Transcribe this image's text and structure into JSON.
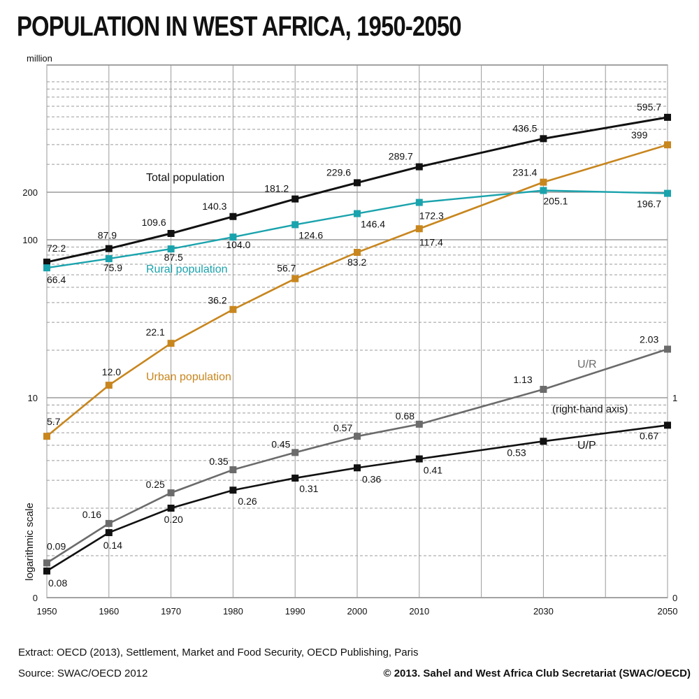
{
  "title": "POPULATION IN WEST AFRICA, 1950-2050",
  "footer": {
    "extract": "Extract: OECD (2013), Settlement, Market and Food Security, OECD Publishing, Paris",
    "source": "Source: SWAC/OECD 2012",
    "copyright": "© 2013. Sahel and West Africa Club Secretariat (SWAC/OECD)"
  },
  "colors": {
    "total": "#111111",
    "rural": "#1aa3ad",
    "urban": "#c8861e",
    "ur": "#6b6b6b",
    "up": "#111111",
    "grid": "#9a9a9a"
  },
  "chart_data": {
    "type": "line",
    "left_axis": {
      "unit_label": "million",
      "scale_label": "logarithmic scale",
      "scale": "log",
      "tick_labels": [
        "0",
        "10",
        "100",
        "200"
      ],
      "ticks": [
        10,
        100,
        200
      ]
    },
    "right_axis": {
      "note": "(right-hand axis)",
      "scale": "log",
      "tick_labels": [
        "0",
        "1"
      ],
      "ticks": [
        1
      ]
    },
    "x": [
      1950,
      1960,
      1970,
      1980,
      1990,
      2000,
      2010,
      2030,
      2050
    ],
    "x_tick_labels": [
      "1950",
      "1960",
      "1970",
      "1980",
      "1990",
      "2000",
      "2010",
      "2030",
      "2050"
    ],
    "series": [
      {
        "key": "total",
        "name": "Total population",
        "axis": "left",
        "values": [
          72.2,
          87.9,
          109.6,
          140.3,
          181.2,
          229.6,
          289.7,
          436.5,
          595.7
        ],
        "labels": [
          "72.2",
          "87.9",
          "109.6",
          "140.3",
          "181.2",
          "229.6",
          "289.7",
          "436.5",
          "595.7"
        ]
      },
      {
        "key": "rural",
        "name": "Rural population",
        "axis": "left",
        "values": [
          66.4,
          75.9,
          87.5,
          104.0,
          124.6,
          146.4,
          172.3,
          205.1,
          196.7
        ],
        "labels": [
          "66.4",
          "75.9",
          "87.5",
          "104.0",
          "124.6",
          "146.4",
          "172.3",
          "205.1",
          "196.7"
        ]
      },
      {
        "key": "urban",
        "name": "Urban population",
        "axis": "left",
        "values": [
          5.7,
          12.0,
          22.1,
          36.2,
          56.7,
          83.2,
          117.4,
          231.4,
          399
        ],
        "labels": [
          "5.7",
          "12.0",
          "22.1",
          "36.2",
          "56.7",
          "83.2",
          "117.4",
          "231.4",
          "399"
        ]
      },
      {
        "key": "ur",
        "name": "U/R",
        "axis": "right",
        "values": [
          0.09,
          0.16,
          0.25,
          0.35,
          0.45,
          0.57,
          0.68,
          1.13,
          2.03
        ],
        "labels": [
          "0.09",
          "0.16",
          "0.25",
          "0.35",
          "0.45",
          "0.57",
          "0.68",
          "1.13",
          "2.03"
        ]
      },
      {
        "key": "up",
        "name": "U/P",
        "axis": "right",
        "values": [
          0.08,
          0.14,
          0.2,
          0.26,
          0.31,
          0.36,
          0.41,
          0.53,
          0.67
        ],
        "labels": [
          "0.08",
          "0.14",
          "0.20",
          "0.26",
          "0.31",
          "0.36",
          "0.41",
          "0.53",
          "0.67"
        ]
      }
    ],
    "grid": true,
    "legend": "inline labels"
  }
}
